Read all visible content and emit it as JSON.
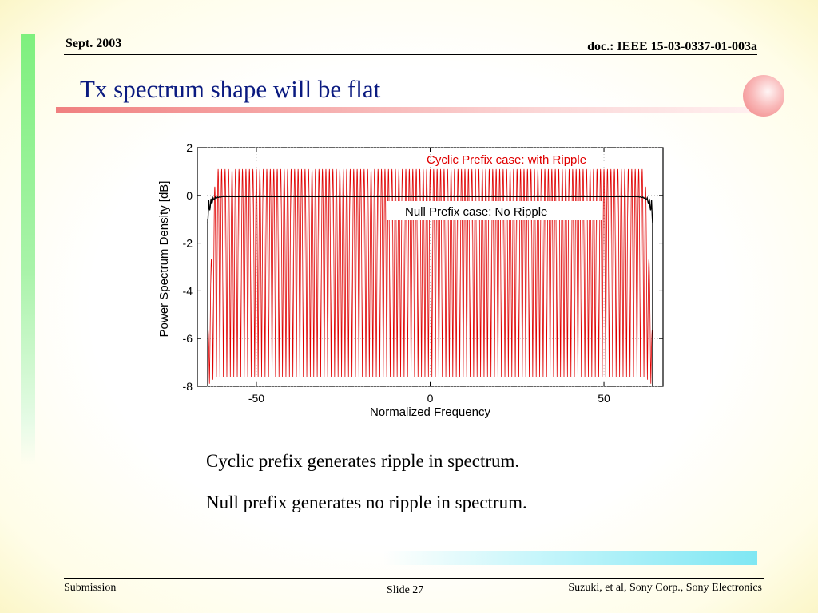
{
  "header": {
    "date": "Sept. 2003",
    "doc_id": "doc.: IEEE 15-03-0337-01-003a"
  },
  "slide_title": "Tx spectrum shape will be flat",
  "chart_data": {
    "type": "line",
    "xlabel": "Normalized Frequency",
    "ylabel": "Power Spectrum Density [dB]",
    "xlim": [
      -67,
      67
    ],
    "ylim": [
      -8,
      2
    ],
    "x_ticks": [
      -50,
      0,
      50
    ],
    "y_ticks": [
      2,
      0,
      -2,
      -4,
      -6,
      -8
    ],
    "series": [
      {
        "name": "Cyclic Prefix case:  with Ripple",
        "color": "#e00000",
        "x_range": [
          -64,
          64
        ],
        "ripple_max": 1.1,
        "ripple_min": -7.6,
        "ripple_period": 1
      },
      {
        "name": "Null Prefix case: No Ripple",
        "color": "#000000",
        "x_range": [
          -64,
          64
        ],
        "level": -0.05,
        "edge_level": -1.0
      }
    ],
    "annotations": [
      {
        "text": "Cyclic Prefix case:  with Ripple",
        "color": "#e00000"
      },
      {
        "text": "Null Prefix case: No Ripple",
        "color": "#000000"
      }
    ]
  },
  "bullets": [
    "Cyclic prefix generates ripple in spectrum.",
    "Null prefix generates no ripple in spectrum."
  ],
  "footer": {
    "left": "Submission",
    "center": "Slide 27",
    "right": "Suzuki, et al, Sony Corp., Sony Electronics"
  },
  "colors": {
    "title": "#0a1a80",
    "accent_bar": "#f08080",
    "side_bar": "#7ef07e"
  }
}
